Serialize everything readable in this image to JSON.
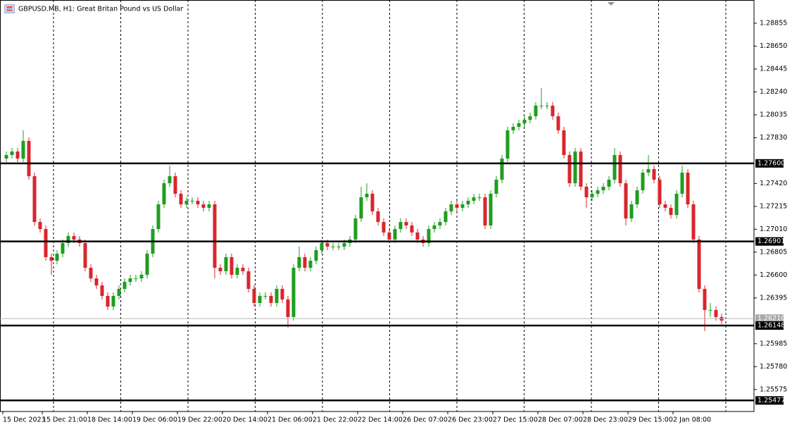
{
  "chart_data": {
    "type": "candlestick",
    "title": "GBPUSD.MB, H1:  Great Britan Pound vs US Dollar",
    "up_color": "#1e9e1e",
    "down_color": "#d8262c",
    "grid": true,
    "ylim": [
      1.25378,
      1.29063
    ],
    "yticks": [
      1.28855,
      {
        "value": 1.2865,
        "label": "1.28650"
      },
      1.28445,
      {
        "value": 1.2824,
        "label": "1.28240"
      },
      1.28035,
      {
        "value": 1.2783,
        "label": "1.27830"
      },
      {
        "value": 1.2742,
        "label": "1.27420"
      },
      1.27215,
      {
        "value": 1.2701,
        "label": "1.27010"
      },
      1.26805,
      {
        "value": 1.266,
        "label": "1.26600"
      },
      1.26395,
      1.25985,
      {
        "value": 1.2578,
        "label": "1.25780"
      },
      1.25575
    ],
    "levels": [
      {
        "value": 1.276,
        "label": "1.27600"
      },
      {
        "value": 1.26901,
        "label": "1.26901"
      },
      {
        "value": 1.26148,
        "label": "1.26148"
      },
      {
        "value": 1.25477,
        "label": "1.25477"
      }
    ],
    "current_price": {
      "value": 1.2621,
      "label": "1.26210"
    },
    "categories": [
      "15 Dec 2023",
      null,
      null,
      null,
      null,
      null,
      null,
      "15 Dec 21:00",
      null,
      null,
      null,
      null,
      null,
      null,
      null,
      "18 Dec 14:00",
      null,
      null,
      null,
      null,
      null,
      null,
      null,
      "19 Dec 06:00",
      null,
      null,
      null,
      null,
      null,
      null,
      null,
      "19 Dec 22:00",
      null,
      null,
      null,
      null,
      null,
      null,
      null,
      "20 Dec 14:00",
      null,
      null,
      null,
      null,
      null,
      null,
      null,
      "21 Dec 06:00",
      null,
      null,
      null,
      null,
      null,
      null,
      null,
      "21 Dec 22:00",
      null,
      null,
      null,
      null,
      null,
      null,
      null,
      "22 Dec 14:00",
      null,
      null,
      null,
      null,
      null,
      null,
      null,
      "26 Dec 07:00",
      null,
      null,
      null,
      null,
      null,
      null,
      null,
      "26 Dec 23:00",
      null,
      null,
      null,
      null,
      null,
      null,
      null,
      "27 Dec 15:00",
      null,
      null,
      null,
      null,
      null,
      null,
      null,
      "28 Dec 07:00",
      null,
      null,
      null,
      null,
      null,
      null,
      null,
      "28 Dec 23:00",
      null,
      null,
      null,
      null,
      null,
      null,
      null,
      "29 Dec 15:00",
      null,
      null,
      null,
      null,
      null,
      null,
      null,
      "2 Jan 08:00",
      null,
      null,
      null,
      null,
      null,
      null,
      null,
      null
    ],
    "open": [
      1.27643,
      1.27675,
      1.27706,
      1.27643,
      1.27801,
      1.27485,
      1.27075,
      1.27012,
      1.2676,
      1.26728,
      1.26791,
      1.26886,
      1.26949,
      1.26918,
      1.26886,
      1.26665,
      1.2657,
      1.26507,
      1.26413,
      1.26318,
      1.26413,
      1.26476,
      1.26539,
      1.2657,
      1.2657,
      1.26602,
      1.26791,
      1.27012,
      1.27233,
      1.27422,
      1.27485,
      1.27328,
      1.27233,
      1.27265,
      1.27265,
      1.27233,
      1.27202,
      1.27233,
      1.26665,
      1.26634,
      1.2676,
      1.26602,
      1.26665,
      1.26634,
      1.26476,
      1.2635,
      1.26413,
      1.26413,
      1.2635,
      1.26476,
      1.26381,
      1.26224,
      1.26665,
      1.2676,
      1.26665,
      1.26728,
      1.26823,
      1.26886,
      1.26855,
      1.26855,
      1.26855,
      1.26886,
      1.26918,
      1.27107,
      1.27296,
      1.27328,
      1.2717,
      1.27075,
      1.26981,
      1.26918,
      1.27012,
      1.27075,
      1.27044,
      1.26981,
      1.26918,
      1.26886,
      1.27012,
      1.27044,
      1.27075,
      1.2717,
      1.27233,
      1.27202,
      1.27233,
      1.27265,
      1.27296,
      1.27296,
      1.27044,
      1.27328,
      1.27454,
      1.27643,
      1.27896,
      1.27927,
      1.27959,
      1.2799,
      1.28022,
      1.28117,
      1.28117,
      1.28117,
      1.28022,
      1.27896,
      1.27675,
      1.27422,
      1.27706,
      1.27391,
      1.27296,
      1.27328,
      1.27359,
      1.27391,
      1.27454,
      1.27675,
      1.27422,
      1.27107,
      1.27233,
      1.27359,
      1.27517,
      1.27549,
      1.27454,
      1.27233,
      1.27202,
      1.27138,
      1.27328,
      1.27517,
      1.27233,
      1.26918,
      1.26476,
      1.26287,
      1.26287,
      1.26224
    ],
    "high": [
      1.27707,
      1.27738,
      1.27738,
      1.27896,
      1.27833,
      1.27517,
      1.27107,
      1.27044,
      1.26792,
      1.26823,
      1.26918,
      1.26981,
      1.26981,
      1.2695,
      1.26918,
      1.26697,
      1.26602,
      1.26539,
      1.26445,
      1.26445,
      1.26508,
      1.26571,
      1.26602,
      1.26602,
      1.26634,
      1.26823,
      1.27044,
      1.27265,
      1.27454,
      1.2758,
      1.27517,
      1.2736,
      1.27297,
      1.27297,
      1.27297,
      1.27265,
      1.27265,
      1.27265,
      1.26697,
      1.26792,
      1.26792,
      1.26697,
      1.26697,
      1.26666,
      1.26508,
      1.26445,
      1.26445,
      1.26445,
      1.26508,
      1.26508,
      1.26413,
      1.26697,
      1.26855,
      1.26792,
      1.2676,
      1.26855,
      1.26918,
      1.26918,
      1.26887,
      1.26887,
      1.26918,
      1.2695,
      1.27139,
      1.27391,
      1.27422,
      1.2736,
      1.27202,
      1.27107,
      1.27013,
      1.27044,
      1.27107,
      1.27107,
      1.27076,
      1.27013,
      1.2695,
      1.27044,
      1.27076,
      1.27107,
      1.27202,
      1.27265,
      1.27265,
      1.27265,
      1.27297,
      1.27328,
      1.27328,
      1.27328,
      1.2736,
      1.27486,
      1.27675,
      1.27928,
      1.27959,
      1.27991,
      1.28022,
      1.28054,
      1.28149,
      1.28274,
      1.28149,
      1.28149,
      1.28054,
      1.27928,
      1.27707,
      1.27738,
      1.27738,
      1.27423,
      1.2736,
      1.27391,
      1.27423,
      1.27486,
      1.27738,
      1.27707,
      1.27454,
      1.27265,
      1.27391,
      1.27549,
      1.27675,
      1.27581,
      1.27486,
      1.27265,
      1.27234,
      1.2736,
      1.2758,
      1.27549,
      1.27265,
      1.2695,
      1.26508,
      1.2635,
      1.26319,
      1.26256
    ],
    "low": [
      1.27611,
      1.27643,
      1.27611,
      1.27611,
      1.27453,
      1.27043,
      1.2698,
      1.26728,
      1.26602,
      1.26696,
      1.26759,
      1.26854,
      1.26886,
      1.26854,
      1.26633,
      1.26538,
      1.26475,
      1.26381,
      1.26286,
      1.26286,
      1.26381,
      1.26444,
      1.26507,
      1.26538,
      1.26538,
      1.2657,
      1.26759,
      1.2698,
      1.27201,
      1.2739,
      1.27296,
      1.27201,
      1.27201,
      1.27233,
      1.27201,
      1.2717,
      1.2717,
      1.2657,
      1.26602,
      1.26602,
      1.2657,
      1.2657,
      1.26602,
      1.26444,
      1.26318,
      1.26318,
      1.26381,
      1.26318,
      1.26318,
      1.26349,
      1.26129,
      1.26192,
      1.26633,
      1.26633,
      1.26633,
      1.26696,
      1.26791,
      1.26823,
      1.26823,
      1.26823,
      1.26823,
      1.26854,
      1.26886,
      1.27075,
      1.27264,
      1.27138,
      1.27043,
      1.26949,
      1.26886,
      1.26886,
      1.2698,
      1.27012,
      1.26949,
      1.26886,
      1.26854,
      1.26854,
      1.2698,
      1.27012,
      1.27043,
      1.27138,
      1.2717,
      1.2717,
      1.27201,
      1.27233,
      1.27264,
      1.27012,
      1.27012,
      1.27296,
      1.27422,
      1.27611,
      1.27864,
      1.27895,
      1.27927,
      1.27958,
      1.2799,
      1.28085,
      1.28085,
      1.2799,
      1.27864,
      1.27643,
      1.2739,
      1.2739,
      1.27359,
      1.27201,
      1.27264,
      1.27296,
      1.27327,
      1.27359,
      1.27422,
      1.2739,
      1.27044,
      1.27075,
      1.27201,
      1.27327,
      1.27485,
      1.27422,
      1.27201,
      1.2717,
      1.27107,
      1.27106,
      1.27296,
      1.27201,
      1.26886,
      1.26444,
      1.26098,
      1.26224,
      1.26192,
      1.26161
    ],
    "close": [
      1.27675,
      1.27706,
      1.27643,
      1.27801,
      1.27485,
      1.27075,
      1.27012,
      1.2676,
      1.26728,
      1.26791,
      1.26886,
      1.26949,
      1.26918,
      1.26886,
      1.26665,
      1.2657,
      1.26507,
      1.26413,
      1.26318,
      1.26413,
      1.26476,
      1.26539,
      1.2657,
      1.2657,
      1.26602,
      1.26791,
      1.27012,
      1.27233,
      1.27422,
      1.27485,
      1.27328,
      1.27233,
      1.27265,
      1.27265,
      1.27233,
      1.27202,
      1.27233,
      1.26665,
      1.26634,
      1.2676,
      1.26602,
      1.26665,
      1.26634,
      1.26476,
      1.2635,
      1.26413,
      1.26413,
      1.2635,
      1.26476,
      1.26381,
      1.26224,
      1.26665,
      1.2676,
      1.26665,
      1.26728,
      1.26823,
      1.26886,
      1.26855,
      1.26855,
      1.26855,
      1.26886,
      1.26918,
      1.27107,
      1.27296,
      1.27328,
      1.2717,
      1.27075,
      1.26981,
      1.26918,
      1.27012,
      1.27075,
      1.27044,
      1.26981,
      1.26918,
      1.26886,
      1.27012,
      1.27044,
      1.27075,
      1.2717,
      1.27233,
      1.27202,
      1.27233,
      1.27265,
      1.27296,
      1.27296,
      1.27044,
      1.27328,
      1.27454,
      1.27643,
      1.27896,
      1.27927,
      1.27959,
      1.2799,
      1.28022,
      1.28117,
      1.28117,
      1.28117,
      1.28022,
      1.27896,
      1.27675,
      1.27422,
      1.27706,
      1.27391,
      1.27296,
      1.27328,
      1.27359,
      1.27391,
      1.27454,
      1.27675,
      1.27422,
      1.27107,
      1.27233,
      1.27359,
      1.27517,
      1.27549,
      1.27454,
      1.27233,
      1.27202,
      1.27138,
      1.27328,
      1.27517,
      1.27233,
      1.26918,
      1.26476,
      1.26287,
      1.26287,
      1.26224,
      1.26192
    ]
  }
}
